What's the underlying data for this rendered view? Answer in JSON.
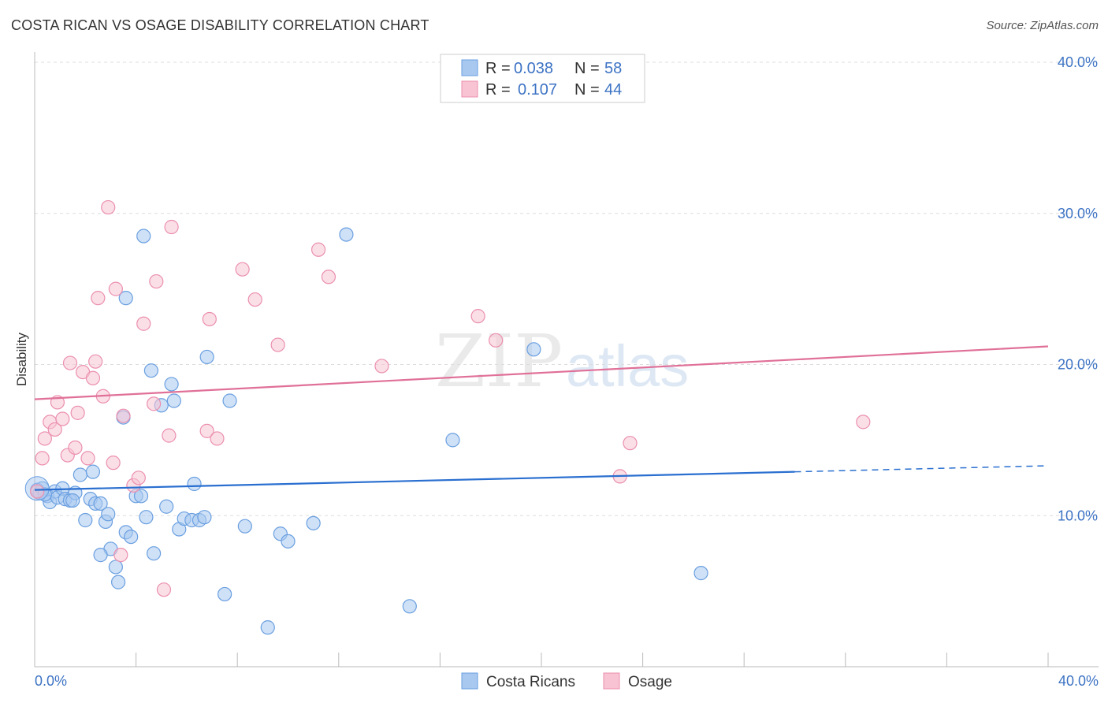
{
  "title": "COSTA RICAN VS OSAGE DISABILITY CORRELATION CHART",
  "source": "Source: ZipAtlas.com",
  "watermark": {
    "part1": "ZIP",
    "part2": "atlas"
  },
  "colors": {
    "blue_fill": "#a8c8f0",
    "blue_stroke": "#6a9fe0",
    "blue_line": "#2a6fd0",
    "pink_fill": "#f8c4d4",
    "pink_stroke": "#eb8fae",
    "pink_line": "#e07098",
    "grid": "#dddddd",
    "axis": "#bbbbbb",
    "tick_text": "#3d73c4"
  },
  "legend": {
    "rows": [
      {
        "r_label": "R =",
        "r_value": "0.038",
        "n_label": "N =",
        "n_value": "58",
        "color": "blue"
      },
      {
        "r_label": "R =",
        "r_value": "0.107",
        "n_label": "N =",
        "n_value": "44",
        "color": "pink"
      }
    ]
  },
  "bottom_legend": [
    {
      "label": "Costa Ricans",
      "color": "blue"
    },
    {
      "label": "Osage",
      "color": "pink"
    }
  ],
  "chart_data": {
    "type": "scatter",
    "title": "COSTA RICAN VS OSAGE DISABILITY CORRELATION CHART",
    "xlabel": "",
    "ylabel": "Disability",
    "xlim": [
      0,
      40
    ],
    "ylim": [
      0,
      40
    ],
    "x_tick_labels": [
      "0.0%",
      "40.0%"
    ],
    "y_ticks": [
      10,
      20,
      30,
      40
    ],
    "y_tick_labels": [
      "10.0%",
      "20.0%",
      "30.0%",
      "40.0%"
    ],
    "grid": true,
    "series": [
      {
        "name": "Costa Ricans",
        "color": "blue",
        "R": 0.038,
        "N": 58,
        "trend": {
          "x0": 0,
          "y0": 11.7,
          "x1": 30,
          "y1": 12.9,
          "dash_to": 40,
          "dash_y": 13.3
        },
        "points": [
          [
            0.1,
            11.7
          ],
          [
            0.2,
            11.5
          ],
          [
            0.3,
            11.8
          ],
          [
            0.5,
            11.3
          ],
          [
            0.6,
            10.9
          ],
          [
            0.8,
            11.6
          ],
          [
            0.9,
            11.2
          ],
          [
            1.1,
            11.8
          ],
          [
            1.2,
            11.1
          ],
          [
            1.4,
            11.0
          ],
          [
            1.6,
            11.5
          ],
          [
            1.8,
            12.7
          ],
          [
            2.0,
            9.7
          ],
          [
            2.2,
            11.1
          ],
          [
            2.3,
            12.9
          ],
          [
            2.4,
            10.8
          ],
          [
            2.6,
            10.8
          ],
          [
            2.8,
            9.6
          ],
          [
            2.9,
            10.1
          ],
          [
            3.0,
            7.8
          ],
          [
            3.2,
            6.6
          ],
          [
            3.3,
            5.6
          ],
          [
            2.6,
            7.4
          ],
          [
            3.6,
            8.9
          ],
          [
            3.8,
            8.6
          ],
          [
            3.5,
            16.5
          ],
          [
            3.6,
            24.4
          ],
          [
            4.0,
            11.3
          ],
          [
            4.2,
            11.3
          ],
          [
            4.3,
            28.5
          ],
          [
            4.4,
            9.9
          ],
          [
            4.6,
            19.6
          ],
          [
            4.7,
            7.5
          ],
          [
            5.0,
            17.3
          ],
          [
            5.2,
            10.6
          ],
          [
            5.4,
            18.7
          ],
          [
            5.5,
            17.6
          ],
          [
            5.7,
            9.1
          ],
          [
            5.9,
            9.8
          ],
          [
            6.2,
            9.7
          ],
          [
            6.3,
            12.1
          ],
          [
            6.5,
            9.7
          ],
          [
            6.7,
            9.9
          ],
          [
            6.8,
            20.5
          ],
          [
            7.5,
            4.8
          ],
          [
            7.7,
            17.6
          ],
          [
            8.3,
            9.3
          ],
          [
            9.2,
            2.6
          ],
          [
            9.7,
            8.8
          ],
          [
            10.0,
            8.3
          ],
          [
            11.0,
            9.5
          ],
          [
            12.3,
            28.6
          ],
          [
            14.8,
            4.0
          ],
          [
            16.5,
            15.0
          ],
          [
            19.7,
            21.0
          ],
          [
            26.3,
            6.2
          ],
          [
            1.5,
            11.0
          ],
          [
            0.4,
            11.4
          ]
        ]
      },
      {
        "name": "Osage",
        "color": "pink",
        "R": 0.107,
        "N": 44,
        "trend": {
          "x0": 0,
          "y0": 17.7,
          "x1": 40,
          "y1": 21.2
        },
        "points": [
          [
            0.1,
            11.6
          ],
          [
            0.3,
            13.8
          ],
          [
            0.4,
            15.1
          ],
          [
            0.6,
            16.2
          ],
          [
            0.8,
            15.7
          ],
          [
            0.9,
            17.5
          ],
          [
            1.1,
            16.4
          ],
          [
            1.3,
            14.0
          ],
          [
            1.4,
            20.1
          ],
          [
            1.6,
            14.5
          ],
          [
            1.7,
            16.8
          ],
          [
            1.9,
            19.5
          ],
          [
            2.1,
            13.8
          ],
          [
            2.3,
            19.1
          ],
          [
            2.4,
            20.2
          ],
          [
            2.5,
            24.4
          ],
          [
            2.7,
            17.9
          ],
          [
            2.9,
            30.4
          ],
          [
            3.1,
            13.5
          ],
          [
            3.2,
            25.0
          ],
          [
            3.4,
            7.4
          ],
          [
            3.5,
            16.6
          ],
          [
            3.9,
            12.0
          ],
          [
            4.1,
            12.5
          ],
          [
            4.3,
            22.7
          ],
          [
            4.7,
            17.4
          ],
          [
            4.8,
            25.5
          ],
          [
            5.1,
            5.1
          ],
          [
            5.3,
            15.3
          ],
          [
            5.4,
            29.1
          ],
          [
            6.9,
            23.0
          ],
          [
            6.8,
            15.6
          ],
          [
            7.2,
            15.1
          ],
          [
            8.2,
            26.3
          ],
          [
            8.7,
            24.3
          ],
          [
            9.6,
            21.3
          ],
          [
            11.2,
            27.6
          ],
          [
            11.6,
            25.8
          ],
          [
            13.7,
            19.9
          ],
          [
            17.5,
            23.2
          ],
          [
            18.2,
            21.6
          ],
          [
            23.1,
            12.6
          ],
          [
            23.5,
            14.8
          ],
          [
            32.7,
            16.2
          ]
        ]
      }
    ]
  }
}
